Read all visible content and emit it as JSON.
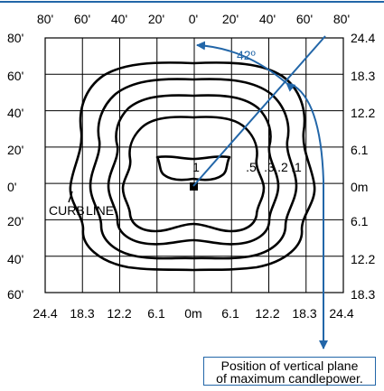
{
  "colors": {
    "accent": "#2266a8",
    "line": "#000000",
    "background": "#ffffff"
  },
  "axes": {
    "top_feet": [
      "80'",
      "60'",
      "40'",
      "20'",
      "0'",
      "20'",
      "40'",
      "60'",
      "80'"
    ],
    "left_feet": [
      "80'",
      "60'",
      "40'",
      "20'",
      "0'",
      "20'",
      "40'",
      "60'"
    ],
    "right_meters": [
      "24.4",
      "18.3",
      "12.2",
      "6.1",
      "0m",
      "6.1",
      "12.2",
      "18.3"
    ],
    "bottom_meters": [
      "24.4",
      "18.3",
      "12.2",
      "6.1",
      "0m",
      "6.1",
      "12.2",
      "18.3",
      "24.4"
    ]
  },
  "isolines": {
    "labels": [
      ".5",
      ".3",
      ".2",
      ".1"
    ],
    "inner_label": "1"
  },
  "curb": {
    "label_left": "CURB",
    "label_right": "LINE"
  },
  "angle": {
    "label": "42º"
  },
  "callout": {
    "line1": "Position of vertical plane",
    "line2": "of maximum candlepower."
  }
}
